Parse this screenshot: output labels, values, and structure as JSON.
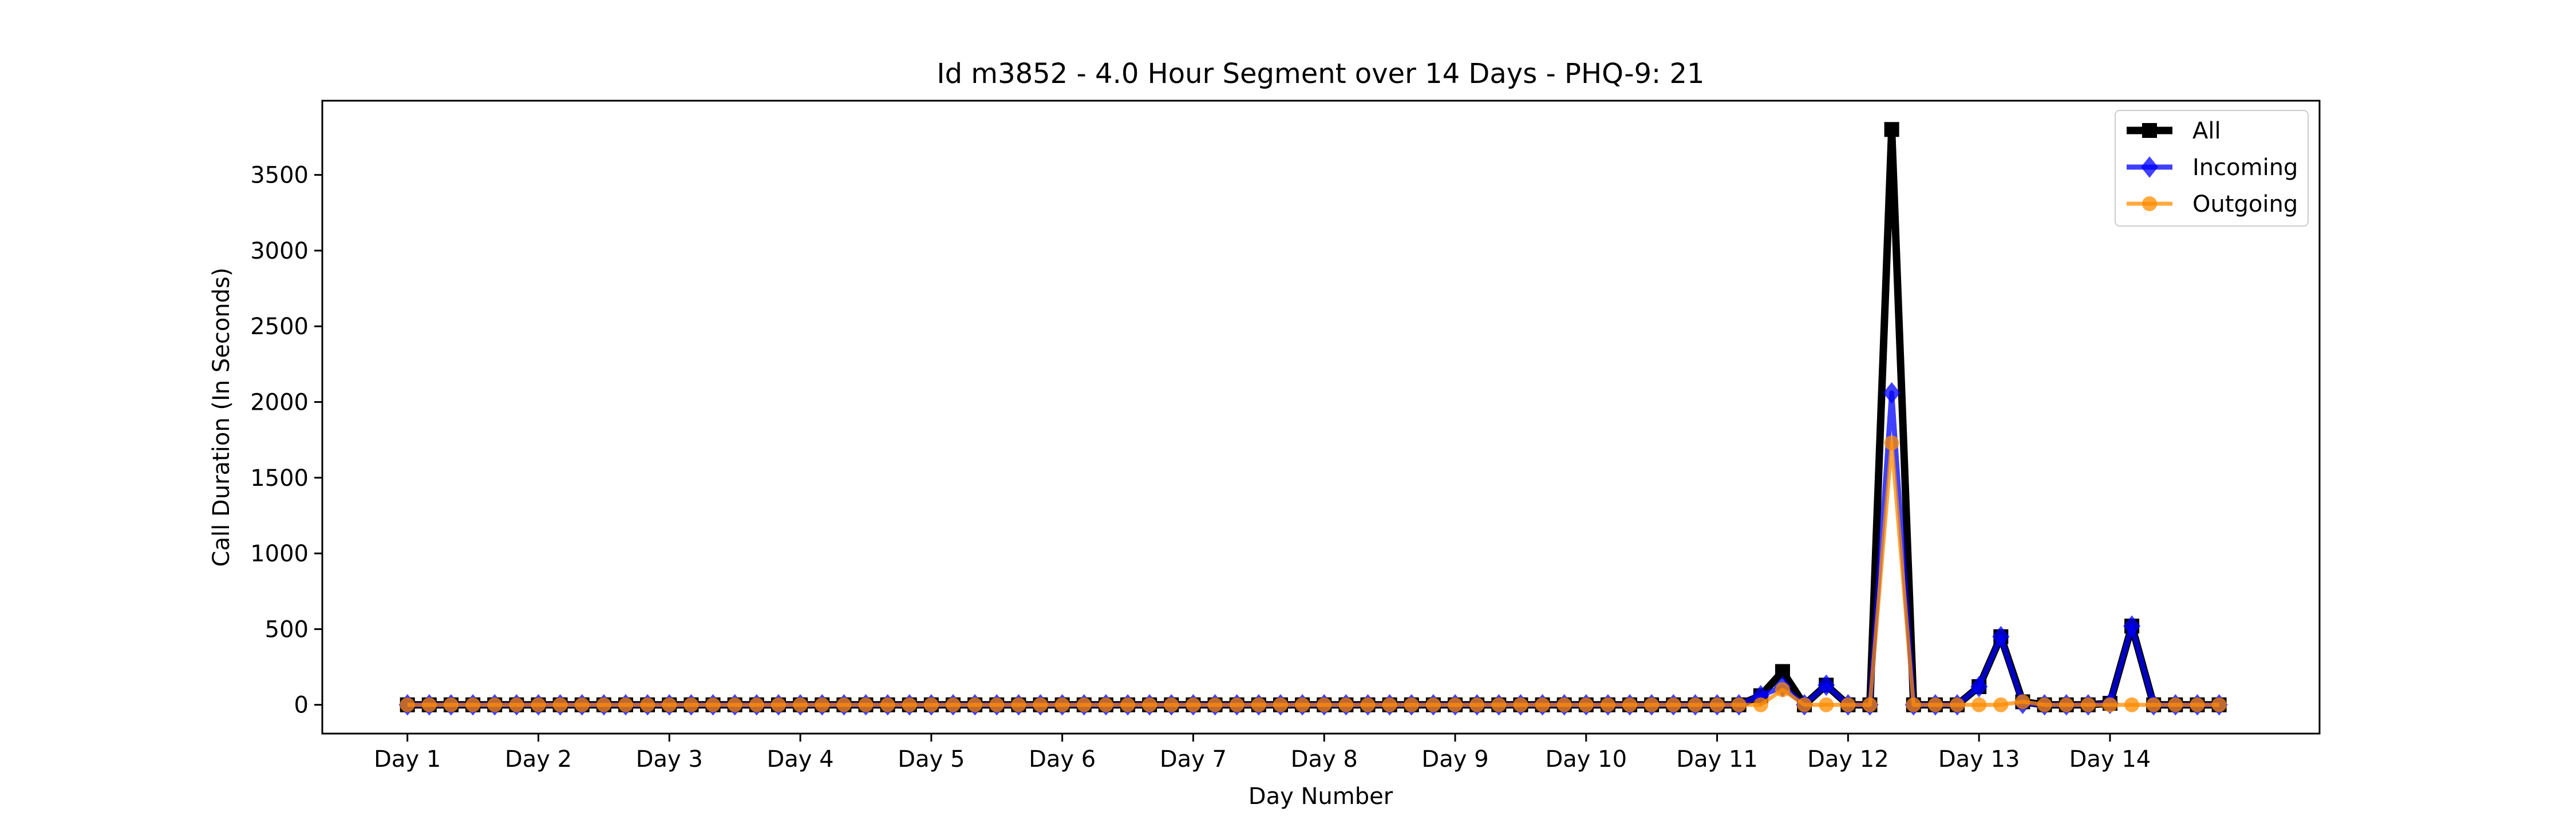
{
  "chart_data": {
    "type": "line",
    "title": "Id m3852 - 4.0 Hour Segment over 14 Days - PHQ-9: 21",
    "xlabel": "Day Number",
    "ylabel": "Call Duration (In Seconds)",
    "xtick_labels": [
      "Day 1",
      "Day 2",
      "Day 3",
      "Day 4",
      "Day 5",
      "Day 6",
      "Day 7",
      "Day 8",
      "Day 9",
      "Day 10",
      "Day 11",
      "Day 12",
      "Day 13",
      "Day 14"
    ],
    "xtick_positions": [
      0,
      6,
      12,
      18,
      24,
      30,
      36,
      42,
      48,
      54,
      60,
      66,
      72,
      78
    ],
    "x": [
      0,
      1,
      2,
      3,
      4,
      5,
      6,
      7,
      8,
      9,
      10,
      11,
      12,
      13,
      14,
      15,
      16,
      17,
      18,
      19,
      20,
      21,
      22,
      23,
      24,
      25,
      26,
      27,
      28,
      29,
      30,
      31,
      32,
      33,
      34,
      35,
      36,
      37,
      38,
      39,
      40,
      41,
      42,
      43,
      44,
      45,
      46,
      47,
      48,
      49,
      50,
      51,
      52,
      53,
      54,
      55,
      56,
      57,
      58,
      59,
      60,
      61,
      62,
      63,
      64,
      65,
      66,
      67,
      68,
      69,
      70,
      71,
      72,
      73,
      74,
      75,
      76,
      77,
      78,
      79,
      80,
      81,
      82,
      83
    ],
    "ylim": [
      -190,
      3990
    ],
    "yticks": [
      0,
      500,
      1000,
      1500,
      2000,
      2500,
      3000,
      3500
    ],
    "grid": false,
    "legend_position": "top-right",
    "series": [
      {
        "name": "All",
        "color": "#000000",
        "marker": "square",
        "values": [
          0,
          0,
          0,
          0,
          0,
          0,
          0,
          0,
          0,
          0,
          0,
          0,
          0,
          0,
          0,
          0,
          0,
          0,
          0,
          0,
          0,
          0,
          0,
          0,
          0,
          0,
          0,
          0,
          0,
          0,
          0,
          0,
          0,
          0,
          0,
          0,
          0,
          0,
          0,
          0,
          0,
          0,
          0,
          0,
          0,
          0,
          0,
          0,
          0,
          0,
          0,
          0,
          0,
          0,
          0,
          0,
          0,
          0,
          0,
          0,
          0,
          0,
          0,
          0,
          0,
          0,
          0,
          0,
          0,
          0,
          0,
          0,
          0,
          0,
          0,
          0,
          0,
          0,
          0,
          0,
          0,
          0,
          0,
          0
        ]
      },
      {
        "name": "Incoming",
        "color": "#0000ff",
        "marker": "diamond",
        "values": [
          0,
          0,
          0,
          0,
          0,
          0,
          0,
          0,
          0,
          0,
          0,
          0,
          0,
          0,
          0,
          0,
          0,
          0,
          0,
          0,
          0,
          0,
          0,
          0,
          0,
          0,
          0,
          0,
          0,
          0,
          0,
          0,
          0,
          0,
          0,
          0,
          0,
          0,
          0,
          0,
          0,
          0,
          0,
          0,
          0,
          0,
          0,
          0,
          0,
          0,
          0,
          0,
          0,
          0,
          0,
          0,
          0,
          0,
          0,
          0,
          0,
          0,
          0,
          0,
          0,
          0,
          0,
          0,
          0,
          0,
          0,
          0,
          0,
          0,
          0,
          0,
          0,
          0,
          0,
          0,
          0,
          0,
          0,
          0
        ]
      },
      {
        "name": "Outgoing",
        "color": "#ff8c00",
        "marker": "circle",
        "values": [
          0,
          0,
          0,
          0,
          0,
          0,
          0,
          0,
          0,
          0,
          0,
          0,
          0,
          0,
          0,
          0,
          0,
          0,
          0,
          0,
          0,
          0,
          0,
          0,
          0,
          0,
          0,
          0,
          0,
          0,
          0,
          0,
          0,
          0,
          0,
          0,
          0,
          0,
          0,
          0,
          0,
          0,
          0,
          0,
          0,
          0,
          0,
          0,
          0,
          0,
          0,
          0,
          0,
          0,
          0,
          0,
          0,
          0,
          0,
          0,
          0,
          0,
          0,
          0,
          0,
          0,
          0,
          0,
          0,
          0,
          0,
          0,
          0,
          0,
          0,
          0,
          0,
          0,
          0,
          0,
          0,
          0,
          0,
          0
        ]
      }
    ],
    "overrides": {
      "All": {
        "62": 60,
        "63": 220,
        "64": 0,
        "65": 130,
        "66": 0,
        "67": 0,
        "68": 3800,
        "72": 120,
        "73": 450,
        "74": 20,
        "78": 10,
        "79": 520
      },
      "Incoming": {
        "62": 60,
        "63": 120,
        "64": 0,
        "65": 130,
        "66": 0,
        "67": 0,
        "68": 2060,
        "72": 120,
        "73": 450,
        "74": 10,
        "78": 10,
        "79": 520
      },
      "Outgoing": {
        "62": 0,
        "63": 100,
        "64": 0,
        "65": 0,
        "66": 0,
        "67": 0,
        "68": 1730,
        "72": 0,
        "73": 0,
        "74": 20,
        "78": 0,
        "79": 0
      }
    }
  }
}
